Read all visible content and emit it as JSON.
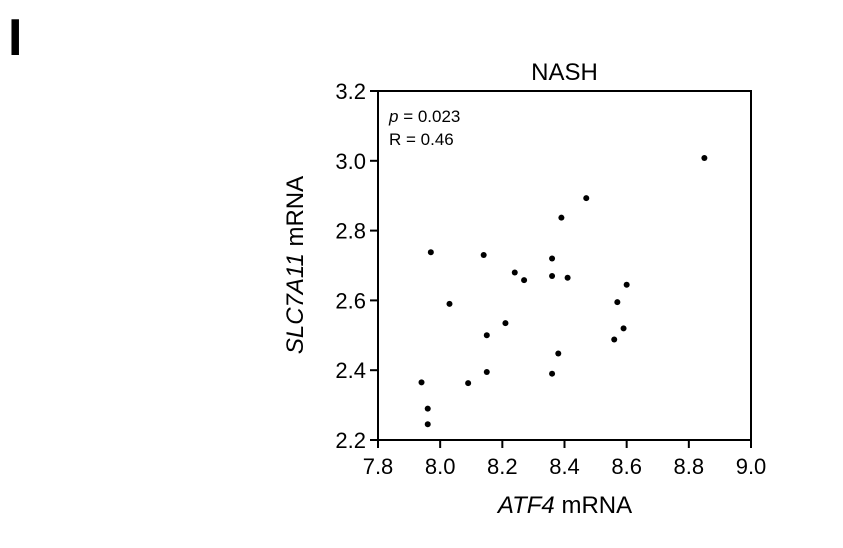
{
  "panel_label": "I",
  "chart_data": {
    "type": "scatter",
    "title": "NASH",
    "xlabel": {
      "italic": "ATF4",
      "rest": " mRNA"
    },
    "ylabel": {
      "italic": "SLC7A11",
      "rest": " mRNA"
    },
    "xlim": [
      7.8,
      9.0
    ],
    "ylim": [
      2.2,
      3.2
    ],
    "xticks": [
      "7.8",
      "8.0",
      "8.2",
      "8.4",
      "8.6",
      "8.8",
      "9.0"
    ],
    "yticks": [
      "2.2",
      "2.4",
      "2.6",
      "2.8",
      "3.0",
      "3.2"
    ],
    "grid": false,
    "annotations": {
      "p_symbol": "p",
      "p_value": " = 0.023",
      "r_text": "R = 0.46"
    },
    "points": [
      {
        "x": 7.94,
        "y": 2.365
      },
      {
        "x": 7.96,
        "y": 2.29
      },
      {
        "x": 7.96,
        "y": 2.245
      },
      {
        "x": 7.97,
        "y": 2.738
      },
      {
        "x": 8.03,
        "y": 2.59
      },
      {
        "x": 8.09,
        "y": 2.363
      },
      {
        "x": 8.14,
        "y": 2.73
      },
      {
        "x": 8.15,
        "y": 2.5
      },
      {
        "x": 8.15,
        "y": 2.395
      },
      {
        "x": 8.21,
        "y": 2.535
      },
      {
        "x": 8.24,
        "y": 2.68
      },
      {
        "x": 8.27,
        "y": 2.658
      },
      {
        "x": 8.36,
        "y": 2.72
      },
      {
        "x": 8.36,
        "y": 2.67
      },
      {
        "x": 8.36,
        "y": 2.39
      },
      {
        "x": 8.38,
        "y": 2.448
      },
      {
        "x": 8.39,
        "y": 2.837
      },
      {
        "x": 8.41,
        "y": 2.665
      },
      {
        "x": 8.47,
        "y": 2.893
      },
      {
        "x": 8.56,
        "y": 2.488
      },
      {
        "x": 8.57,
        "y": 2.595
      },
      {
        "x": 8.59,
        "y": 2.52
      },
      {
        "x": 8.6,
        "y": 2.645
      },
      {
        "x": 8.85,
        "y": 3.008
      }
    ]
  }
}
